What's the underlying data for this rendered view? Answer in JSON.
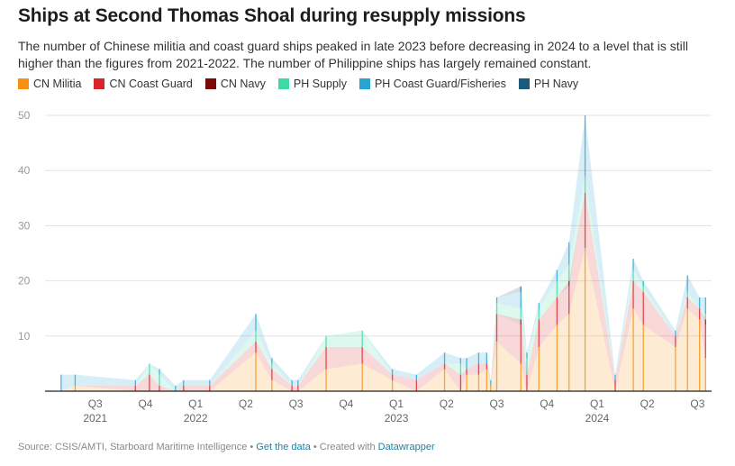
{
  "title": "Ships at Second Thomas Shoal during resupply missions",
  "description": "The number of Chinese militia and coast guard ships peaked in late 2023 before decreasing in 2024 to a level that is still higher than the figures from 2021-2022. The number of Philippine ships has largely remained constant.",
  "footer": {
    "source": "Source: CSIS/AMTI, Starboard Maritime Intelligence",
    "sep1": " • ",
    "get_data": "Get the data",
    "sep2": " • Created with ",
    "datawrapper": "Datawrapper"
  },
  "chart_data": {
    "type": "area",
    "stacked": true,
    "title": "Ships at Second Thomas Shoal during resupply missions",
    "xlabel": "",
    "ylabel": "",
    "ylim": [
      0,
      50
    ],
    "yticks": [
      10,
      20,
      30,
      40,
      50
    ],
    "grid": true,
    "legend_position": "top-left",
    "xticks": [
      {
        "label": "Q3",
        "year": "2021",
        "x": 2021.5
      },
      {
        "label": "Q4",
        "year": "",
        "x": 2021.75
      },
      {
        "label": "Q1",
        "year": "2022",
        "x": 2022.0
      },
      {
        "label": "Q2",
        "year": "",
        "x": 2022.25
      },
      {
        "label": "Q3",
        "year": "",
        "x": 2022.5
      },
      {
        "label": "Q4",
        "year": "",
        "x": 2022.75
      },
      {
        "label": "Q1",
        "year": "2023",
        "x": 2023.0
      },
      {
        "label": "Q2",
        "year": "",
        "x": 2023.25
      },
      {
        "label": "Q3",
        "year": "",
        "x": 2023.5
      },
      {
        "label": "Q4",
        "year": "",
        "x": 2023.75
      },
      {
        "label": "Q1",
        "year": "2024",
        "x": 2024.0
      },
      {
        "label": "Q2",
        "year": "",
        "x": 2024.25
      },
      {
        "label": "Q3",
        "year": "",
        "x": 2024.5
      }
    ],
    "x": [
      2021.33,
      2021.4,
      2021.7,
      2021.77,
      2021.82,
      2021.9,
      2021.94,
      2022.07,
      2022.3,
      2022.38,
      2022.48,
      2022.51,
      2022.65,
      2022.83,
      2022.98,
      2023.1,
      2023.24,
      2023.32,
      2023.35,
      2023.41,
      2023.45,
      2023.47,
      2023.5,
      2023.62,
      2023.65,
      2023.71,
      2023.8,
      2023.86,
      2023.94,
      2024.09,
      2024.18,
      2024.23,
      2024.39,
      2024.45,
      2024.51,
      2024.54
    ],
    "series": [
      {
        "name": "CN Militia",
        "color": "#f59113",
        "values": [
          0,
          1,
          0,
          0,
          0,
          0,
          0,
          0,
          7,
          2,
          0,
          0,
          4,
          5,
          2,
          0,
          4,
          0,
          3,
          3,
          4,
          1,
          9,
          5,
          0,
          8,
          12,
          14,
          26,
          0,
          15,
          12,
          8,
          15,
          13,
          6
        ]
      },
      {
        "name": "CN Coast Guard",
        "color": "#d7262b",
        "values": [
          0,
          0,
          1,
          3,
          1,
          0,
          1,
          1,
          2,
          2,
          1,
          1,
          4,
          3,
          1,
          2,
          1,
          3,
          1,
          2,
          1,
          0,
          5,
          7,
          3,
          5,
          5,
          5,
          10,
          2,
          5,
          6,
          2,
          2,
          2,
          6
        ]
      },
      {
        "name": "CN Navy",
        "color": "#7b0b0b",
        "values": [
          0,
          0,
          0,
          0,
          0,
          0,
          0,
          0,
          0,
          0,
          0,
          0,
          0,
          0,
          0,
          0,
          0,
          0,
          0,
          0,
          0,
          0,
          0,
          1,
          0,
          0,
          0,
          1,
          0,
          0,
          0,
          0,
          0,
          0,
          0,
          1
        ]
      },
      {
        "name": "PH Supply",
        "color": "#3dd9a6",
        "values": [
          0,
          0,
          0,
          2,
          2,
          0,
          0,
          0,
          2,
          1,
          0,
          0,
          2,
          3,
          0,
          0,
          0,
          2,
          0,
          0,
          0,
          0,
          2,
          2,
          3,
          2,
          3,
          3,
          3,
          0,
          2,
          1,
          0,
          1,
          0,
          1
        ]
      },
      {
        "name": "PH Coast Guard/Fisheries",
        "color": "#28a3d2",
        "values": [
          3,
          2,
          1,
          0,
          1,
          1,
          1,
          1,
          3,
          1,
          1,
          1,
          0,
          0,
          1,
          1,
          2,
          1,
          2,
          2,
          2,
          1,
          1,
          3,
          1,
          1,
          2,
          4,
          11,
          1,
          2,
          1,
          1,
          3,
          2,
          3
        ]
      },
      {
        "name": "PH Navy",
        "color": "#1b5a7a",
        "values": [
          0,
          0,
          0,
          0,
          0,
          0,
          0,
          0,
          0,
          0,
          0,
          0,
          0,
          0,
          0,
          0,
          0,
          0,
          0,
          0,
          0,
          0,
          0,
          1,
          0,
          0,
          0,
          0,
          0,
          0,
          0,
          0,
          0,
          0,
          0,
          0
        ]
      }
    ]
  }
}
